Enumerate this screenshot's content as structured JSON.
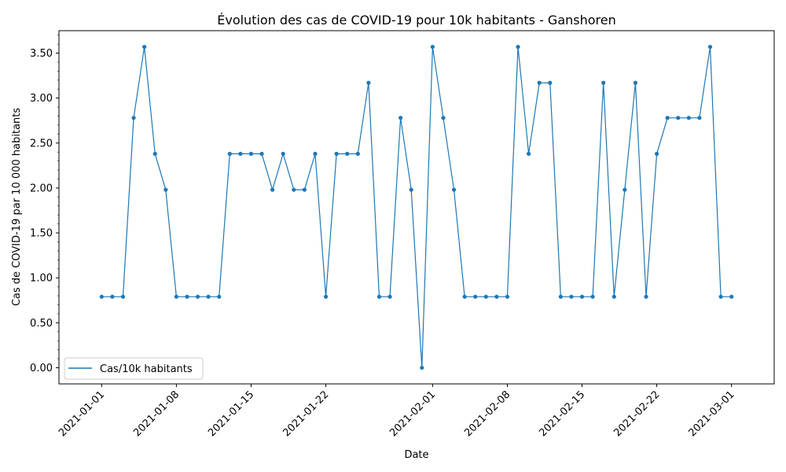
{
  "chart_data": {
    "type": "line",
    "title": "Évolution des cas de COVID-19 pour 10k habitants - Ganshoren",
    "xlabel": "Date",
    "ylabel": "Cas de COVID-19 par 10 000 habitants",
    "x_start": "2021-01-01",
    "x_end": "2021-03-01",
    "xlim": [
      "2020-12-28",
      "2021-03-05"
    ],
    "ylim": [
      -0.18,
      3.75
    ],
    "x_ticks": [
      "2021-01-01",
      "2021-01-08",
      "2021-01-15",
      "2021-01-22",
      "2021-02-01",
      "2021-02-08",
      "2021-02-15",
      "2021-02-22",
      "2021-03-01"
    ],
    "y_ticks": [
      "0.00",
      "0.50",
      "1.00",
      "1.50",
      "2.00",
      "2.50",
      "3.00",
      "3.50"
    ],
    "y_tick_values": [
      0,
      0.5,
      1.0,
      1.5,
      2.0,
      2.5,
      3.0,
      3.5
    ],
    "color": "#1f77b4",
    "legend_position": "lower-left",
    "series": [
      {
        "name": "Cas/10k habitants",
        "values": [
          0.79,
          0.79,
          0.79,
          2.78,
          3.57,
          2.38,
          1.98,
          0.79,
          0.79,
          0.79,
          0.79,
          0.79,
          2.38,
          2.38,
          2.38,
          2.38,
          1.98,
          2.38,
          1.98,
          1.98,
          2.38,
          0.79,
          2.38,
          2.38,
          2.38,
          3.17,
          0.79,
          0.79,
          2.78,
          1.98,
          0.0,
          3.57,
          2.78,
          1.98,
          0.79,
          0.79,
          0.79,
          0.79,
          0.79,
          3.57,
          2.38,
          3.17,
          3.17,
          0.79,
          0.79,
          0.79,
          0.79,
          3.17,
          0.79,
          1.98,
          3.17,
          0.79,
          2.38,
          2.78,
          2.78,
          2.78,
          2.78,
          3.57,
          0.79,
          0.79
        ]
      }
    ]
  }
}
